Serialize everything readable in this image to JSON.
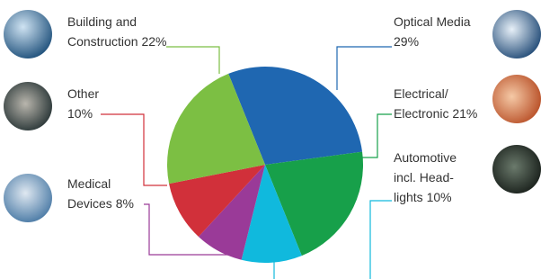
{
  "chart_data": {
    "type": "pie",
    "categories": [
      [
        "Optical Media"
      ],
      [
        "Electrical/",
        "Electronic"
      ],
      [
        "Automotive",
        "incl. Head-",
        "lights"
      ],
      [
        "Medical",
        "Devices"
      ],
      [
        "Other"
      ],
      [
        "Building and",
        "Construction"
      ]
    ],
    "values": [
      29,
      21,
      10,
      8,
      10,
      22
    ],
    "value_labels": [
      "29%",
      "21%",
      "10%",
      "8%",
      "10%",
      "22%"
    ],
    "colors": [
      "#1f67b1",
      "#17a04a",
      "#10b9dd",
      "#9a3a98",
      "#d1303a",
      "#7cbf43"
    ]
  }
}
